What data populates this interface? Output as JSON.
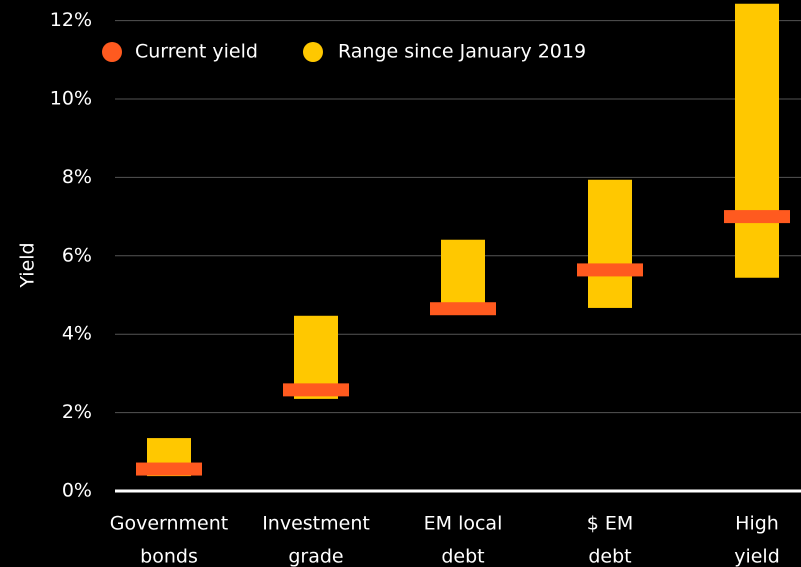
{
  "chart_data": {
    "type": "range",
    "y_label": "Yield",
    "categories": [
      [
        "Government",
        "bonds"
      ],
      [
        "Investment",
        "grade"
      ],
      [
        "EM local",
        "debt"
      ],
      [
        "$ EM",
        "debt"
      ],
      [
        "High",
        "yield"
      ]
    ],
    "series": [
      {
        "name": "Current yield",
        "color": "#ff5a1f",
        "values": [
          0.56,
          2.58,
          4.65,
          5.64,
          7.0
        ]
      },
      {
        "name": "Range since January 2019",
        "color": "#ffc800",
        "low": [
          0.38,
          2.35,
          4.6,
          4.67,
          5.44
        ],
        "high": [
          1.35,
          4.47,
          6.41,
          7.94,
          12.43
        ]
      }
    ],
    "ylim": [
      0,
      12.5
    ],
    "yticks": [
      {
        "value": 0,
        "label": "0%"
      },
      {
        "value": 2,
        "label": "2%"
      },
      {
        "value": 4,
        "label": "4%"
      },
      {
        "value": 6,
        "label": "6%"
      },
      {
        "value": 8,
        "label": "8%"
      },
      {
        "value": 10,
        "label": "10%"
      },
      {
        "value": 12,
        "label": "12%"
      }
    ],
    "grid": true
  }
}
